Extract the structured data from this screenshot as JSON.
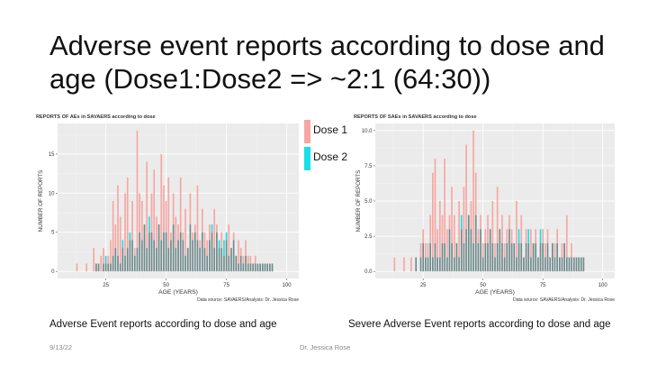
{
  "slide": {
    "title": "Adverse event reports according to dose and age (Dose1:Dose2 => ~2:1 (64:30))",
    "date": "9/13/22",
    "author": "Dr. Jessica Rose"
  },
  "legend": {
    "items": [
      {
        "label": "Dose 1",
        "color": "#f6a6a2"
      },
      {
        "label": "Dose 2",
        "color": "#19e0e6"
      }
    ]
  },
  "captions": {
    "left": "Adverse Event reports according to dose and age",
    "right": "Severe Adverse Event reports according to dose and age"
  },
  "colors": {
    "dose1": "#f6a6a2",
    "dose2": "#19e0e6",
    "overlap": "#6f8a8b",
    "panel_bg": "#ebebeb",
    "grid": "#ffffff"
  },
  "chart_data": [
    {
      "type": "bar",
      "title": "REPORTS OF AEs in SAVAERS according to dose",
      "xlabel": "AGE (YEARS)",
      "ylabel": "NUMBER OF REPORTS",
      "source": "Data source: SAVAERS/Analysis: Dr. Jessica Rose",
      "xlim": [
        5,
        105
      ],
      "ylim": [
        -0.9,
        18.9
      ],
      "xticks": [
        "25",
        "50",
        "75",
        "100"
      ],
      "yticks": [
        "0",
        "5",
        "10",
        "15"
      ],
      "grid": true,
      "x": [
        13,
        17,
        20,
        21,
        22,
        23,
        24,
        25,
        26,
        27,
        28,
        29,
        30,
        31,
        32,
        33,
        34,
        35,
        36,
        37,
        38,
        39,
        40,
        41,
        42,
        43,
        44,
        45,
        46,
        47,
        48,
        49,
        50,
        51,
        52,
        53,
        54,
        55,
        56,
        57,
        58,
        59,
        60,
        61,
        62,
        63,
        64,
        65,
        66,
        67,
        68,
        69,
        70,
        71,
        72,
        73,
        74,
        75,
        76,
        77,
        78,
        79,
        80,
        81,
        82,
        83,
        84,
        85,
        86,
        87,
        88,
        89,
        90,
        91,
        92,
        93,
        94
      ],
      "series": [
        {
          "name": "Dose 1",
          "values": [
            1,
            1,
            3,
            1,
            1,
            2,
            3,
            1,
            2,
            4,
            9,
            6,
            11,
            7,
            3,
            10,
            12,
            4,
            9,
            3,
            18,
            10,
            9,
            6,
            14,
            5,
            10,
            13,
            7,
            6,
            15,
            11,
            9,
            12,
            5,
            10,
            7,
            6,
            12,
            5,
            8,
            3,
            10,
            5,
            6,
            11,
            4,
            8,
            5,
            4,
            6,
            5,
            8,
            6,
            3,
            5,
            2,
            4,
            6,
            3,
            5,
            2,
            4,
            3,
            2,
            4,
            2,
            2,
            1,
            2,
            1,
            1,
            1,
            1,
            1,
            1,
            1
          ]
        },
        {
          "name": "Dose 2",
          "values": [
            0,
            0,
            0,
            1,
            1,
            0,
            1,
            2,
            1,
            1,
            2,
            3,
            2,
            1,
            4,
            2,
            3,
            5,
            4,
            2,
            3,
            5,
            4,
            6,
            3,
            7,
            5,
            4,
            3,
            6,
            4,
            5,
            5,
            3,
            4,
            6,
            3,
            4,
            5,
            4,
            2,
            3,
            6,
            4,
            5,
            4,
            3,
            5,
            3,
            2,
            4,
            6,
            3,
            5,
            4,
            3,
            4,
            5,
            2,
            3,
            4,
            2,
            1,
            2,
            1,
            2,
            1,
            1,
            1,
            1,
            1,
            1,
            1,
            1,
            1,
            1,
            1
          ]
        }
      ]
    },
    {
      "type": "bar",
      "title": "REPORTS OF SAEs in SAVAERS according to dose",
      "xlabel": "AGE (YEARS)",
      "ylabel": "NUMBER OF REPORTS",
      "source": "Data source: SAVAERS/Analysis: Dr. Jessica Rose",
      "xlim": [
        5,
        105
      ],
      "ylim": [
        -0.5,
        10.5
      ],
      "xticks": [
        "25",
        "50",
        "75",
        "100"
      ],
      "yticks": [
        "0.0",
        "2.5",
        "5.0",
        "7.5",
        "10.0"
      ],
      "grid": true,
      "x": [
        13,
        17,
        20,
        22,
        24,
        25,
        26,
        27,
        28,
        29,
        30,
        31,
        32,
        33,
        34,
        35,
        36,
        37,
        38,
        39,
        40,
        41,
        42,
        43,
        44,
        45,
        46,
        47,
        48,
        49,
        50,
        51,
        52,
        53,
        54,
        55,
        56,
        57,
        58,
        59,
        60,
        61,
        62,
        63,
        64,
        65,
        66,
        67,
        68,
        69,
        70,
        71,
        72,
        73,
        74,
        75,
        76,
        77,
        78,
        79,
        80,
        81,
        82,
        83,
        84,
        85,
        86,
        87,
        88,
        89,
        90,
        91,
        92
      ],
      "series": [
        {
          "name": "Dose 1",
          "values": [
            1,
            1,
            1,
            1,
            2,
            3,
            2,
            2,
            4,
            7,
            8,
            3,
            5,
            4,
            8,
            3,
            4,
            6,
            4,
            2,
            5,
            3,
            6,
            9,
            4,
            5,
            10,
            7,
            3,
            4,
            2,
            3,
            4,
            3,
            5,
            2,
            6,
            3,
            4,
            2,
            3,
            4,
            3,
            2,
            5,
            2,
            4,
            1,
            3,
            2,
            3,
            2,
            3,
            1,
            2,
            3,
            2,
            3,
            1,
            2,
            2,
            3,
            1,
            2,
            2,
            4,
            1,
            2,
            1,
            1,
            1,
            1,
            1
          ]
        },
        {
          "name": "Dose 2",
          "values": [
            0,
            0,
            0,
            1,
            1,
            2,
            1,
            1,
            2,
            1,
            2,
            1,
            1,
            2,
            2,
            1,
            3,
            2,
            1,
            2,
            1,
            4,
            2,
            3,
            4,
            3,
            2,
            4,
            2,
            3,
            1,
            2,
            2,
            3,
            2,
            1,
            2,
            3,
            2,
            1,
            2,
            3,
            2,
            2,
            1,
            3,
            2,
            1,
            2,
            3,
            1,
            2,
            2,
            1,
            3,
            2,
            1,
            2,
            1,
            2,
            1,
            2,
            1,
            1,
            2,
            1,
            1,
            1,
            1,
            1,
            1,
            1,
            1
          ]
        }
      ]
    }
  ]
}
